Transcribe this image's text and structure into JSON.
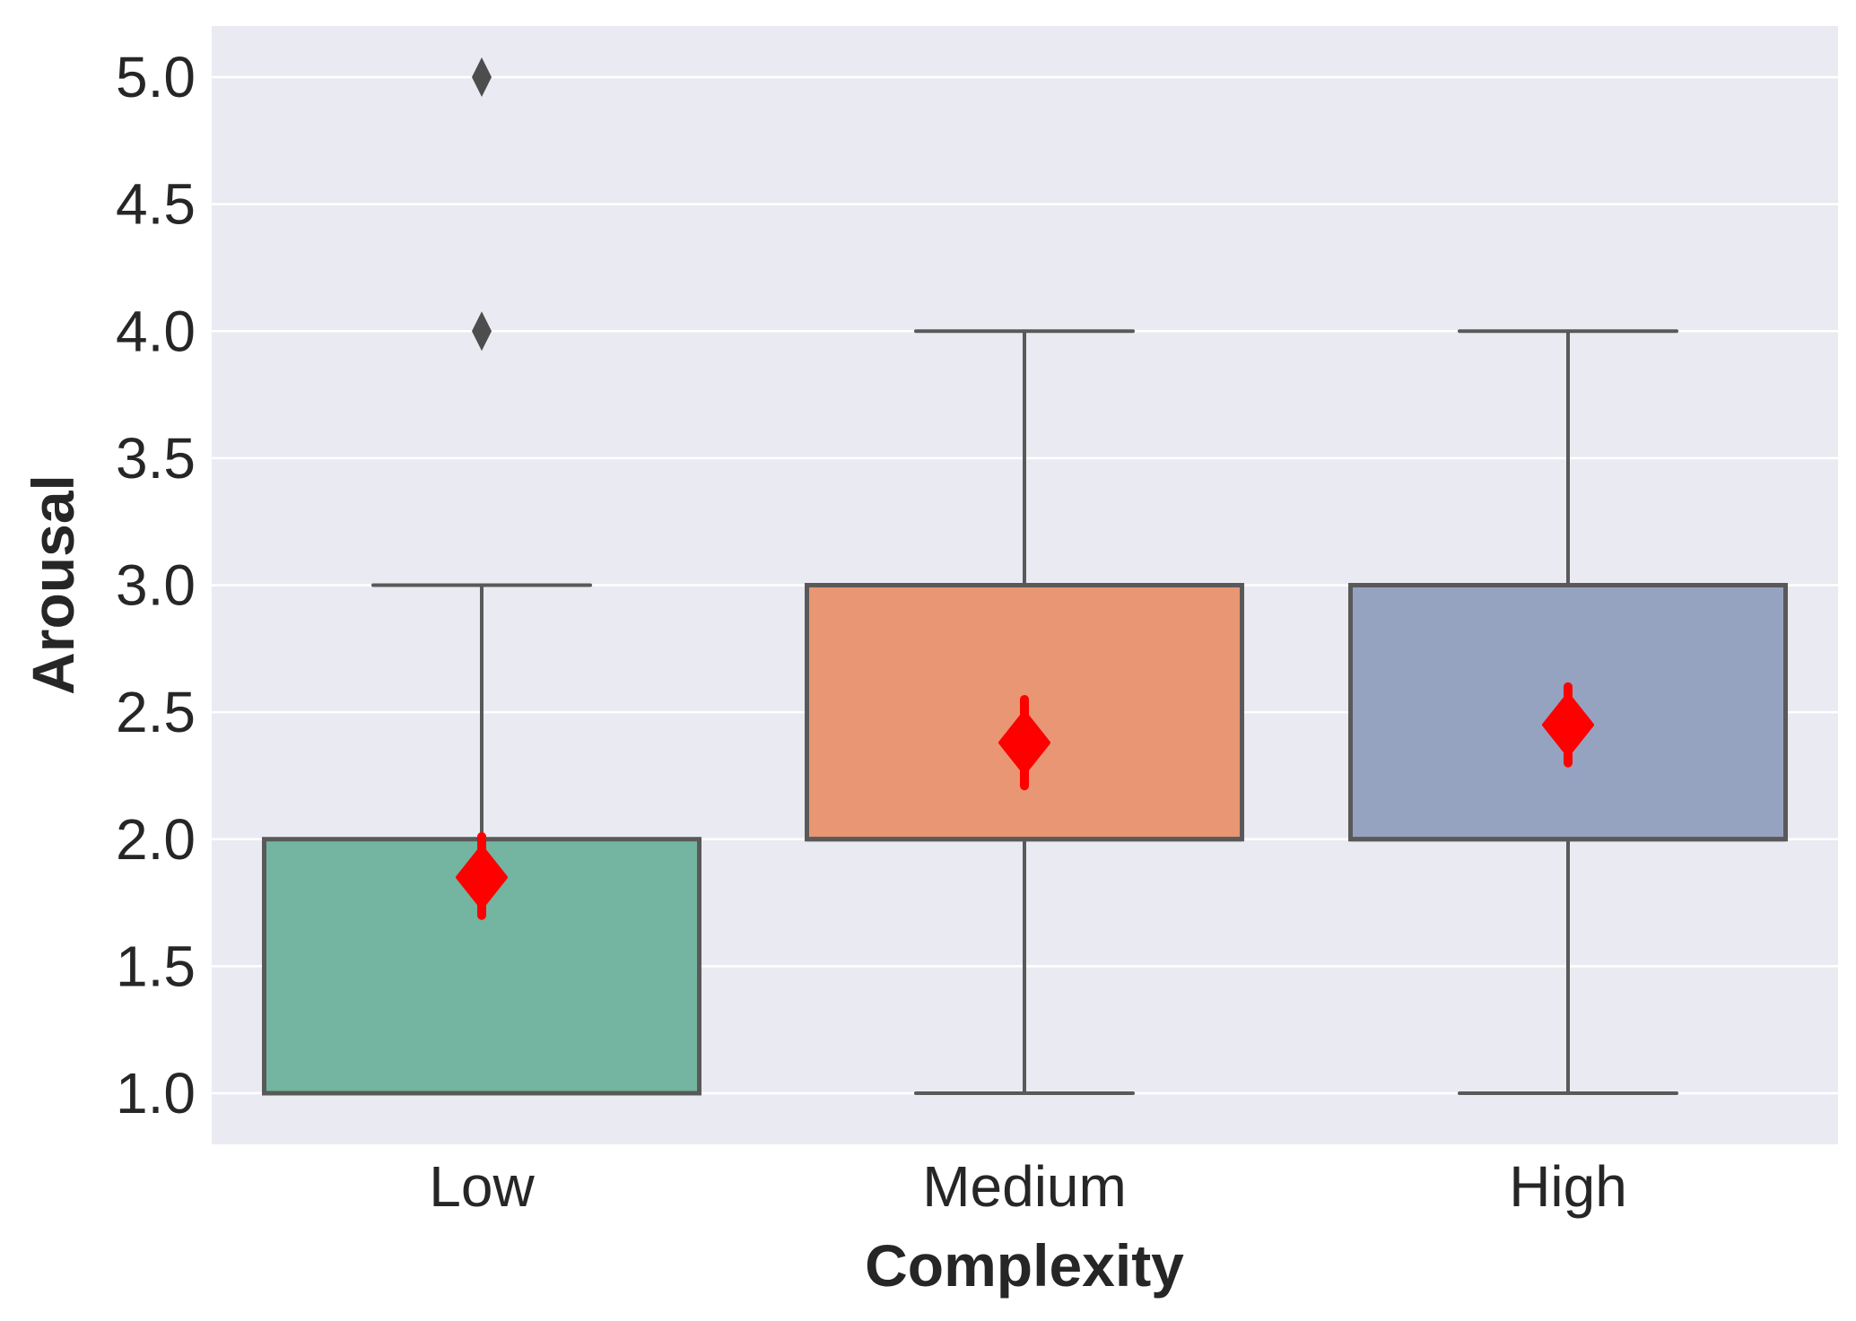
{
  "chart_data": {
    "type": "box",
    "xlabel": "Complexity",
    "ylabel": "Arousal",
    "categories": [
      "Low",
      "Medium",
      "High"
    ],
    "ylim": [
      0.8,
      5.2
    ],
    "yticks": [
      "1.0",
      "1.5",
      "2.0",
      "2.5",
      "3.0",
      "3.5",
      "4.0",
      "4.5",
      "5.0"
    ],
    "grid": true,
    "boxes": [
      {
        "category": "Low",
        "whisker_low": 1,
        "q1": 1,
        "median": 1,
        "q3": 2,
        "whisker_high": 3,
        "outliers": [
          4,
          5
        ],
        "mean": 1.85,
        "mean_ci": [
          1.7,
          2.01
        ]
      },
      {
        "category": "Medium",
        "whisker_low": 1,
        "q1": 2,
        "median": 2,
        "q3": 3,
        "whisker_high": 4,
        "outliers": [],
        "mean": 2.38,
        "mean_ci": [
          2.21,
          2.55
        ]
      },
      {
        "category": "High",
        "whisker_low": 1,
        "q1": 2,
        "median": 2,
        "q3": 3,
        "whisker_high": 4,
        "outliers": [],
        "mean": 2.45,
        "mean_ci": [
          2.3,
          2.6
        ]
      }
    ],
    "colors": {
      "box_fills": [
        "#73b5a0",
        "#e89674",
        "#95a3c1"
      ],
      "line": "#595959",
      "mean_marker": "#ff0000",
      "background": "#eaeaf2",
      "grid": "#ffffff"
    }
  }
}
